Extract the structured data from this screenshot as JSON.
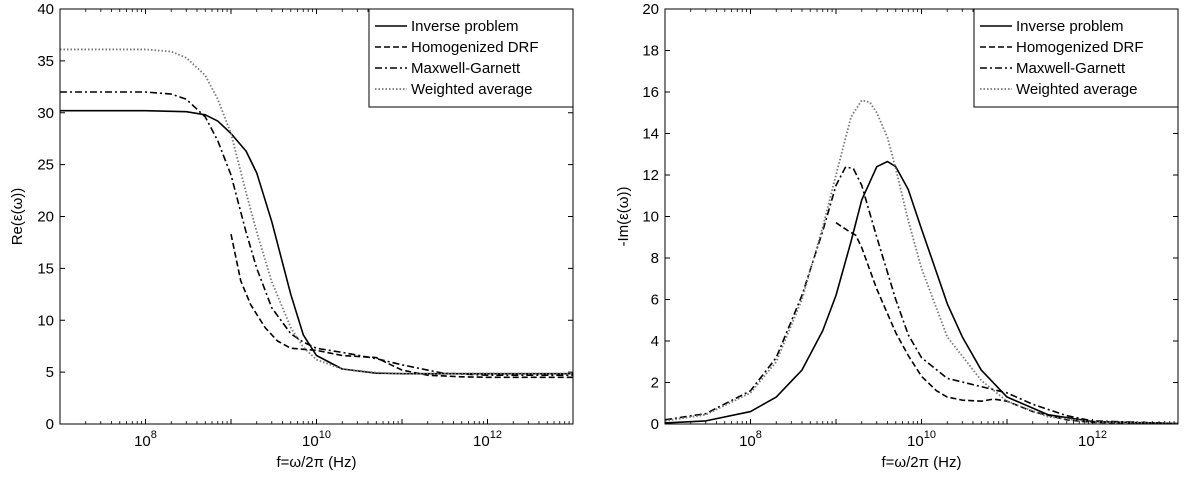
{
  "chart_data": [
    {
      "type": "line",
      "ylabel": "Re(ε(ω))",
      "xlabel": "f=ω/2π (Hz)",
      "xscale": "log",
      "xlim": [
        10000000.0,
        10000000000000.0
      ],
      "ylim": [
        0,
        40
      ],
      "yticks": [
        0,
        5,
        10,
        15,
        20,
        25,
        30,
        35,
        40
      ],
      "xticks": [
        {
          "base": "10",
          "exp": "8",
          "value": 100000000.0
        },
        {
          "base": "10",
          "exp": "10",
          "value": 10000000000.0
        },
        {
          "base": "10",
          "exp": "12",
          "value": 1000000000000.0
        }
      ],
      "grid": false,
      "legend_position": "top-right",
      "series": [
        {
          "name": "Inverse problem",
          "style": "solid",
          "x": [
            10000000.0,
            100000000.0,
            300000000.0,
            500000000.0,
            700000000.0,
            1000000000.0,
            1500000000.0,
            2000000000.0,
            3000000000.0,
            5000000000.0,
            7000000000.0,
            10000000000.0,
            20000000000.0,
            50000000000.0,
            100000000000.0,
            1000000000000.0,
            10000000000000.0
          ],
          "y": [
            30.2,
            30.2,
            30.1,
            29.8,
            29.2,
            28,
            26.3,
            24.2,
            19.5,
            12.5,
            8.6,
            6.6,
            5.3,
            4.9,
            4.85,
            4.85,
            4.85
          ]
        },
        {
          "name": "Homogenized DRF",
          "style": "dashed",
          "x": [
            1000000000.0,
            1300000000.0,
            1700000000.0,
            2500000000.0,
            3500000000.0,
            5000000000.0,
            7000000000.0,
            10000000000.0,
            20000000000.0,
            50000000000.0,
            70000000000.0,
            100000000000.0,
            200000000000.0,
            500000000000.0,
            1000000000000.0,
            10000000000000.0
          ],
          "y": [
            18.3,
            13.8,
            11.5,
            9.3,
            8,
            7.3,
            7.2,
            7.1,
            6.6,
            6.4,
            5.8,
            5.2,
            4.7,
            4.55,
            4.5,
            4.5
          ]
        },
        {
          "name": "Maxwell-Garnett",
          "style": "dashdot",
          "x": [
            10000000.0,
            100000000.0,
            200000000.0,
            300000000.0,
            500000000.0,
            700000000.0,
            1000000000.0,
            1500000000.0,
            2000000000.0,
            3000000000.0,
            5000000000.0,
            7000000000.0,
            10000000000.0,
            20000000000.0,
            50000000000.0,
            100000000000.0,
            300000000000.0,
            1000000000000.0,
            10000000000000.0
          ],
          "y": [
            32,
            32,
            31.8,
            31.3,
            29.6,
            27.3,
            24,
            18.5,
            15,
            11.2,
            8.7,
            7.9,
            7.3,
            6.9,
            6.3,
            5.7,
            4.9,
            4.7,
            4.7
          ]
        },
        {
          "name": "Weighted average",
          "style": "dotted",
          "x": [
            10000000.0,
            100000000.0,
            200000000.0,
            300000000.0,
            500000000.0,
            700000000.0,
            1000000000.0,
            1500000000.0,
            2000000000.0,
            3000000000.0,
            5000000000.0,
            7000000000.0,
            10000000000.0,
            20000000000.0,
            50000000000.0,
            100000000000.0,
            1000000000000.0,
            10000000000000.0
          ],
          "y": [
            36.1,
            36.1,
            35.9,
            35.3,
            33.6,
            31.3,
            28,
            22.3,
            18.5,
            13.7,
            9.3,
            7.4,
            6.2,
            5.3,
            4.95,
            4.85,
            4.85,
            4.85
          ]
        }
      ]
    },
    {
      "type": "line",
      "ylabel": "-Im(ε(ω))",
      "xlabel": "f=ω/2π (Hz)",
      "xscale": "log",
      "xlim": [
        10000000.0,
        10000000000000.0
      ],
      "ylim": [
        0,
        20
      ],
      "yticks": [
        0,
        2,
        4,
        6,
        8,
        10,
        12,
        14,
        16,
        18,
        20
      ],
      "xticks": [
        {
          "base": "10",
          "exp": "8",
          "value": 100000000.0
        },
        {
          "base": "10",
          "exp": "10",
          "value": 10000000000.0
        },
        {
          "base": "10",
          "exp": "12",
          "value": 1000000000000.0
        }
      ],
      "grid": false,
      "legend_position": "top-right",
      "series": [
        {
          "name": "Inverse problem",
          "style": "solid",
          "x": [
            10000000.0,
            30000000.0,
            100000000.0,
            200000000.0,
            400000000.0,
            700000000.0,
            1000000000.0,
            1500000000.0,
            2000000000.0,
            3000000000.0,
            4000000000.0,
            5000000000.0,
            7000000000.0,
            10000000000.0,
            15000000000.0,
            20000000000.0,
            30000000000.0,
            50000000000.0,
            100000000000.0,
            300000000000.0,
            1000000000000.0,
            10000000000000.0
          ],
          "y": [
            0.05,
            0.15,
            0.6,
            1.3,
            2.6,
            4.5,
            6.2,
            8.8,
            10.8,
            12.4,
            12.65,
            12.4,
            11.3,
            9.4,
            7.3,
            5.8,
            4.2,
            2.6,
            1.3,
            0.45,
            0.12,
            0.02
          ]
        },
        {
          "name": "Homogenized DRF",
          "style": "dashed",
          "x": [
            1000000000.0,
            1400000000.0,
            1700000000.0,
            2000000000.0,
            3000000000.0,
            5000000000.0,
            7000000000.0,
            10000000000.0,
            15000000000.0,
            20000000000.0,
            30000000000.0,
            50000000000.0,
            70000000000.0,
            100000000000.0,
            200000000000.0,
            500000000000.0,
            1000000000000.0,
            10000000000000.0
          ],
          "y": [
            9.7,
            9.3,
            9.1,
            8.5,
            6.5,
            4.4,
            3.3,
            2.3,
            1.6,
            1.3,
            1.15,
            1.1,
            1.2,
            1.1,
            0.6,
            0.2,
            0.08,
            0.01
          ]
        },
        {
          "name": "Maxwell-Garnett",
          "style": "dashdot",
          "x": [
            10000000.0,
            30000000.0,
            100000000.0,
            200000000.0,
            400000000.0,
            700000000.0,
            1000000000.0,
            1300000000.0,
            1600000000.0,
            2000000000.0,
            3000000000.0,
            5000000000.0,
            7000000000.0,
            10000000000.0,
            20000000000.0,
            50000000000.0,
            100000000000.0,
            200000000000.0,
            500000000000.0,
            1000000000000.0,
            10000000000000.0
          ],
          "y": [
            0.2,
            0.5,
            1.6,
            3.2,
            6.2,
            9.3,
            11.5,
            12.4,
            12.3,
            11.5,
            9,
            6,
            4.3,
            3.2,
            2.2,
            1.8,
            1.5,
            0.95,
            0.4,
            0.15,
            0.02
          ]
        },
        {
          "name": "Weighted average",
          "style": "dotted",
          "x": [
            10000000.0,
            30000000.0,
            100000000.0,
            200000000.0,
            400000000.0,
            700000000.0,
            1000000000.0,
            1500000000.0,
            2000000000.0,
            2500000000.0,
            3000000000.0,
            4000000000.0,
            5000000000.0,
            7000000000.0,
            10000000000.0,
            20000000000.0,
            50000000000.0,
            100000000000.0,
            300000000000.0,
            1000000000000.0,
            10000000000000.0
          ],
          "y": [
            0.15,
            0.45,
            1.5,
            3,
            6,
            9.5,
            12,
            14.8,
            15.6,
            15.5,
            15,
            13.8,
            12.3,
            9.8,
            7.5,
            4.2,
            2.1,
            1.1,
            0.35,
            0.1,
            0.02
          ]
        }
      ]
    }
  ]
}
